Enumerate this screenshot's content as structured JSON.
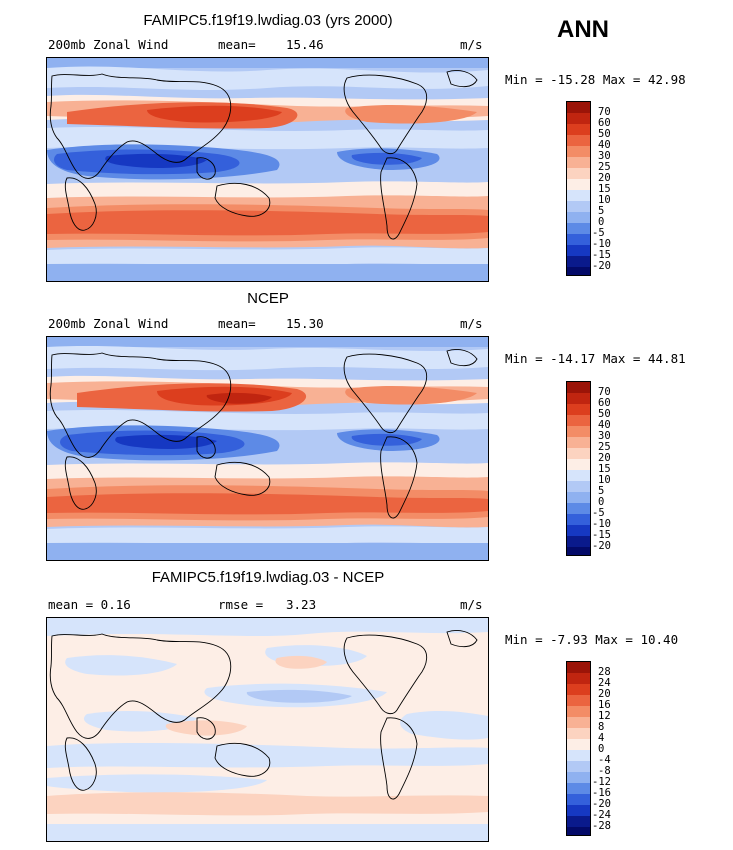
{
  "season": "ANN",
  "panels": [
    {
      "title": "FAMIPC5.f19f19.lwdiag.03 (yrs 2000)",
      "left_label": "200mb Zonal Wind",
      "mean_label": "mean=",
      "mean_value": "15.46",
      "units": "m/s",
      "minmax": "Min = -15.28 Max =  42.98",
      "colorbar": [
        "70",
        "60",
        "50",
        "40",
        "30",
        "25",
        "20",
        "15",
        "10",
        "5",
        "0",
        "-5",
        "-10",
        "-15",
        "-20"
      ]
    },
    {
      "title": "NCEP",
      "left_label": "200mb Zonal Wind",
      "mean_label": "mean=",
      "mean_value": "15.30",
      "units": "m/s",
      "minmax": "Min = -14.17 Max =  44.81",
      "colorbar": [
        "70",
        "60",
        "50",
        "40",
        "30",
        "25",
        "20",
        "15",
        "10",
        "5",
        "0",
        "-5",
        "-10",
        "-15",
        "-20"
      ]
    },
    {
      "title": "FAMIPC5.f19f19.lwdiag.03 - NCEP",
      "left_label": "mean =    0.16",
      "mean_label": "rmse =",
      "mean_value": "3.23",
      "units": "m/s",
      "minmax": "Min =  -7.93 Max =  10.40",
      "colorbar": [
        "28",
        "24",
        "20",
        "16",
        "12",
        "8",
        "4",
        "0",
        "-4",
        "-8",
        "-12",
        "-16",
        "-20",
        "-24",
        "-28"
      ]
    }
  ],
  "colors": {
    "wind_scale": [
      "#9b1408",
      "#c02510",
      "#dc3e1e",
      "#eb6440",
      "#f38c66",
      "#f8b194",
      "#fcd3c0",
      "#fdeee6",
      "#d6e4fb",
      "#b2c9f5",
      "#8fb1f0",
      "#5d8ae6",
      "#3460db",
      "#1638c2",
      "#0a1a8c",
      "#030a68"
    ],
    "diff_scale": [
      "#9b1408",
      "#c02510",
      "#dc3e1e",
      "#eb6440",
      "#f38c66",
      "#f8b194",
      "#fcd3c0",
      "#fdeee6",
      "#d6e4fb",
      "#b2c9f5",
      "#8fb1f0",
      "#5d8ae6",
      "#3460db",
      "#1638c2",
      "#0a1a8c",
      "#030a68"
    ]
  }
}
